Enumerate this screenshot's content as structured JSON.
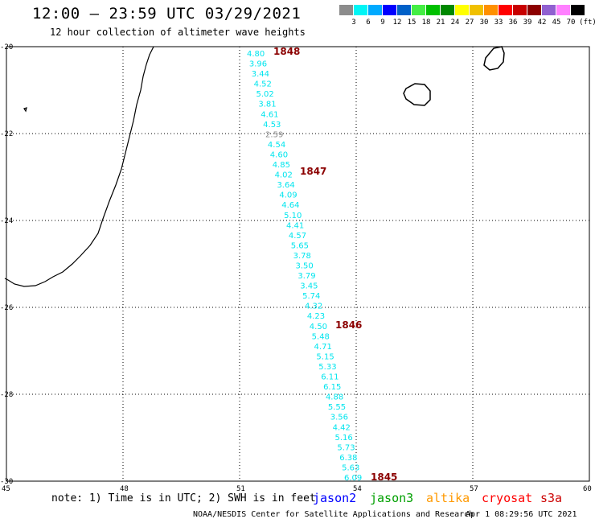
{
  "header": {
    "title": "12:00 – 23:59 UTC 03/29/2021",
    "subtitle": "12 hour collection of altimeter wave heights"
  },
  "legend": {
    "unit": "(ft)",
    "colors": [
      "#8c8c8c",
      "#00f5f5",
      "#00aaff",
      "#0000ff",
      "#0060c8",
      "#44ee44",
      "#00c000",
      "#008800",
      "#ffff00",
      "#f0c000",
      "#ff9000",
      "#ff0000",
      "#c80000",
      "#8c0000",
      "#9060d0",
      "#ff80ff",
      "#000000"
    ],
    "labels": [
      "3",
      "6",
      "9",
      "12",
      "15",
      "18",
      "21",
      "24",
      "27",
      "30",
      "33",
      "36",
      "39",
      "42",
      "45",
      "70"
    ]
  },
  "map": {
    "lon_ticks": [
      "45",
      "48",
      "51",
      "54",
      "57",
      "60"
    ],
    "lat_ticks": [
      "-20",
      "-22",
      "-24",
      "-26",
      "-28",
      "-30"
    ],
    "colors": {
      "water": "#ffffff",
      "coast": "#000000",
      "grid": "#000000",
      "track": "#00e5ee",
      "time_label": "#8b0000",
      "low_value": "#8c8c8c"
    },
    "swh_values": [
      "4.80",
      "3.96",
      "3.44",
      "4.52",
      "5.02",
      "3.81",
      "4.61",
      "4.53",
      "2.59",
      "4.54",
      "4.60",
      "4.85",
      "4.02",
      "3.64",
      "4.09",
      "4.64",
      "5.10",
      "4.41",
      "4.57",
      "5.65",
      "3.78",
      "3.50",
      "3.79",
      "3.45",
      "5.74",
      "4.32",
      "4.23",
      "4.50",
      "5.48",
      "4.71",
      "5.15",
      "5.33",
      "6.11",
      "6.15",
      "4.88",
      "5.55",
      "3.56",
      "4.42",
      "5.16",
      "5.73",
      "6.38",
      "5.63",
      "6.09"
    ],
    "time_labels": [
      "1848",
      "1847",
      "1846",
      "1845"
    ]
  },
  "footer": {
    "note": "note: 1) Time is in UTC; 2) SWH is in feet",
    "satellites": [
      {
        "name": "jason2",
        "color": "#0000ff"
      },
      {
        "name": "jason3",
        "color": "#00a000"
      },
      {
        "name": "altika",
        "color": "#ff9900"
      },
      {
        "name": "cryosat",
        "color": "#ff0000"
      },
      {
        "name": "s3a",
        "color": "#cc0000"
      }
    ],
    "credit": "NOAA/NESDIS Center for Satellite Applications and Research",
    "issued": "Apr  1 08:29:56 UTC 2021"
  }
}
